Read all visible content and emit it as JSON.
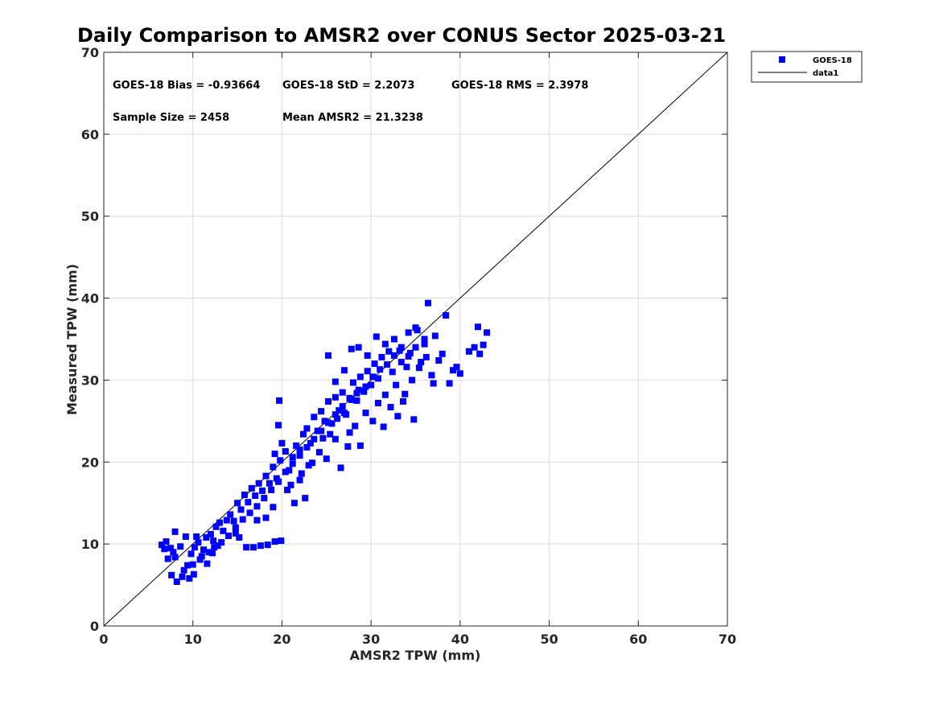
{
  "chart_data": {
    "type": "scatter",
    "title": "Daily Comparison to AMSR2 over CONUS Sector 2025-03-21",
    "xlabel": "AMSR2 TPW (mm)",
    "ylabel": "Measured TPW (mm)",
    "xlim": [
      0,
      70
    ],
    "ylim": [
      0,
      70
    ],
    "xticks": [
      0,
      10,
      20,
      30,
      40,
      50,
      60,
      70
    ],
    "yticks": [
      0,
      10,
      20,
      30,
      40,
      50,
      60,
      70
    ],
    "grid": true,
    "legend_position": "outside-top-right",
    "annotations": [
      "GOES-18 Bias = -0.93664",
      "GOES-18 StD = 2.2073",
      "GOES-18 RMS = 2.3978",
      "Sample Size = 2458",
      "Mean AMSR2 = 21.3238"
    ],
    "series": [
      {
        "name": "GOES-18",
        "kind": "scatter",
        "marker": "square",
        "color": "#0000ff",
        "points": [
          [
            6.5,
            9.9
          ],
          [
            7.0,
            10.3
          ],
          [
            7.5,
            9.5
          ],
          [
            8.0,
            11.5
          ],
          [
            8.0,
            8.4
          ],
          [
            7.6,
            6.2
          ],
          [
            8.2,
            5.4
          ],
          [
            8.8,
            6.0
          ],
          [
            9.0,
            6.8
          ],
          [
            9.4,
            7.4
          ],
          [
            9.8,
            8.8
          ],
          [
            10.0,
            7.5
          ],
          [
            10.2,
            9.6
          ],
          [
            10.6,
            10.2
          ],
          [
            10.1,
            6.3
          ],
          [
            9.6,
            5.8
          ],
          [
            10.4,
            10.9
          ],
          [
            11.0,
            8.5
          ],
          [
            11.2,
            9.3
          ],
          [
            11.5,
            10.8
          ],
          [
            11.8,
            9.0
          ],
          [
            12.0,
            11.2
          ],
          [
            12.3,
            10.4
          ],
          [
            12.6,
            12.1
          ],
          [
            13.0,
            12.6
          ],
          [
            13.4,
            11.6
          ],
          [
            12.8,
            9.8
          ],
          [
            12.2,
            8.9
          ],
          [
            13.8,
            12.9
          ],
          [
            14.2,
            13.6
          ],
          [
            14.6,
            12.8
          ],
          [
            15.0,
            15.0
          ],
          [
            15.4,
            14.2
          ],
          [
            15.8,
            16.0
          ],
          [
            16.2,
            15.1
          ],
          [
            16.6,
            16.8
          ],
          [
            17.0,
            15.9
          ],
          [
            17.4,
            17.4
          ],
          [
            17.8,
            16.5
          ],
          [
            18.2,
            18.3
          ],
          [
            18.6,
            17.4
          ],
          [
            19.0,
            19.4
          ],
          [
            19.4,
            18.0
          ],
          [
            19.8,
            20.2
          ],
          [
            19.2,
            21.0
          ],
          [
            20.0,
            22.3
          ],
          [
            19.6,
            24.5
          ],
          [
            19.7,
            27.5
          ],
          [
            20.4,
            21.3
          ],
          [
            20.8,
            19.0
          ],
          [
            21.2,
            20.6
          ],
          [
            21.6,
            22.0
          ],
          [
            21.0,
            17.2
          ],
          [
            22.0,
            21.5
          ],
          [
            22.4,
            23.4
          ],
          [
            22.6,
            15.6
          ],
          [
            22.8,
            24.1
          ],
          [
            23.2,
            22.3
          ],
          [
            23.6,
            25.5
          ],
          [
            24.0,
            23.8
          ],
          [
            24.4,
            26.2
          ],
          [
            24.8,
            25.0
          ],
          [
            25.2,
            27.4
          ],
          [
            25.6,
            24.7
          ],
          [
            26.0,
            27.9
          ],
          [
            26.4,
            26.3
          ],
          [
            26.8,
            28.5
          ],
          [
            27.2,
            25.8
          ],
          [
            27.6,
            23.6
          ],
          [
            28.0,
            29.7
          ],
          [
            28.4,
            27.5
          ],
          [
            28.8,
            30.4
          ],
          [
            29.2,
            28.6
          ],
          [
            29.6,
            31.1
          ],
          [
            30.0,
            29.4
          ],
          [
            30.4,
            32.0
          ],
          [
            30.8,
            30.2
          ],
          [
            31.2,
            32.8
          ],
          [
            31.6,
            28.2
          ],
          [
            32.0,
            33.5
          ],
          [
            32.4,
            31.0
          ],
          [
            32.8,
            29.4
          ],
          [
            33.2,
            33.6
          ],
          [
            33.6,
            27.4
          ],
          [
            34.0,
            31.6
          ],
          [
            34.4,
            33.3
          ],
          [
            34.8,
            25.2
          ],
          [
            35.2,
            36.1
          ],
          [
            35.6,
            32.2
          ],
          [
            36.0,
            34.4
          ],
          [
            36.4,
            39.4
          ],
          [
            36.8,
            30.6
          ],
          [
            37.2,
            35.4
          ],
          [
            37.6,
            32.4
          ],
          [
            38.0,
            33.2
          ],
          [
            38.4,
            37.9
          ],
          [
            38.8,
            29.6
          ],
          [
            39.2,
            31.2
          ],
          [
            39.6,
            31.6
          ],
          [
            40.0,
            30.8
          ],
          [
            41.0,
            33.5
          ],
          [
            41.6,
            34.0
          ],
          [
            42.0,
            36.5
          ],
          [
            42.2,
            33.2
          ],
          [
            42.6,
            34.3
          ],
          [
            43.0,
            35.8
          ],
          [
            22.0,
            17.8
          ],
          [
            23.0,
            19.6
          ],
          [
            24.2,
            21.2
          ],
          [
            25.0,
            20.4
          ],
          [
            26.0,
            22.8
          ],
          [
            26.6,
            19.3
          ],
          [
            27.4,
            21.9
          ],
          [
            28.2,
            24.4
          ],
          [
            28.8,
            22.0
          ],
          [
            29.4,
            26.0
          ],
          [
            30.2,
            25.0
          ],
          [
            30.8,
            27.2
          ],
          [
            31.4,
            24.3
          ],
          [
            32.2,
            26.7
          ],
          [
            33.0,
            25.6
          ],
          [
            33.8,
            28.3
          ],
          [
            34.6,
            30.0
          ],
          [
            35.4,
            31.5
          ],
          [
            36.2,
            32.8
          ],
          [
            37.0,
            29.6
          ],
          [
            16.0,
            9.6
          ],
          [
            16.8,
            9.6
          ],
          [
            17.6,
            9.8
          ],
          [
            18.4,
            9.9
          ],
          [
            19.2,
            10.3
          ],
          [
            19.9,
            10.4
          ],
          [
            15.2,
            10.8
          ],
          [
            14.8,
            11.3
          ],
          [
            25.2,
            33.0
          ],
          [
            26.0,
            29.8
          ],
          [
            27.0,
            31.2
          ],
          [
            27.8,
            33.8
          ],
          [
            28.6,
            34.0
          ],
          [
            29.6,
            33.0
          ],
          [
            30.6,
            35.3
          ],
          [
            31.6,
            34.4
          ],
          [
            32.6,
            35.0
          ],
          [
            33.4,
            34.0
          ],
          [
            34.2,
            35.8
          ],
          [
            35.0,
            36.4
          ],
          [
            36.0,
            35.0
          ],
          [
            19.0,
            14.5
          ],
          [
            18.2,
            13.2
          ],
          [
            17.2,
            12.9
          ],
          [
            20.6,
            16.6
          ],
          [
            21.4,
            15.0
          ],
          [
            22.2,
            18.6
          ],
          [
            23.4,
            19.9
          ],
          [
            24.6,
            22.9
          ],
          [
            25.4,
            23.4
          ],
          [
            26.2,
            25.3
          ],
          [
            27.0,
            26.0
          ],
          [
            27.8,
            27.6
          ],
          [
            28.6,
            28.8
          ],
          [
            29.4,
            29.2
          ],
          [
            30.2,
            30.4
          ],
          [
            31.0,
            31.3
          ],
          [
            31.8,
            31.9
          ],
          [
            32.6,
            33.0
          ],
          [
            33.4,
            32.2
          ],
          [
            34.2,
            32.9
          ],
          [
            35.0,
            34.0
          ],
          [
            9.2,
            10.9
          ],
          [
            8.6,
            9.7
          ],
          [
            7.8,
            9.0
          ],
          [
            7.2,
            8.2
          ],
          [
            6.8,
            9.4
          ],
          [
            10.8,
            8.1
          ],
          [
            11.6,
            7.6
          ],
          [
            12.4,
            9.6
          ],
          [
            13.2,
            10.2
          ],
          [
            14.0,
            11.0
          ],
          [
            14.8,
            12.0
          ],
          [
            15.6,
            13.0
          ],
          [
            16.4,
            13.8
          ],
          [
            17.2,
            14.6
          ],
          [
            18.0,
            15.6
          ],
          [
            18.8,
            16.6
          ],
          [
            19.6,
            17.6
          ],
          [
            20.4,
            18.8
          ],
          [
            21.2,
            19.8
          ],
          [
            22.0,
            20.8
          ],
          [
            22.8,
            21.8
          ],
          [
            23.6,
            22.8
          ],
          [
            24.4,
            23.8
          ],
          [
            25.2,
            24.8
          ],
          [
            26.0,
            25.8
          ],
          [
            26.8,
            26.8
          ],
          [
            27.6,
            27.8
          ],
          [
            28.4,
            28.4
          ]
        ]
      },
      {
        "name": "data1",
        "kind": "line",
        "color": "#000000",
        "points": [
          [
            0,
            0
          ],
          [
            70,
            70
          ]
        ]
      }
    ]
  }
}
